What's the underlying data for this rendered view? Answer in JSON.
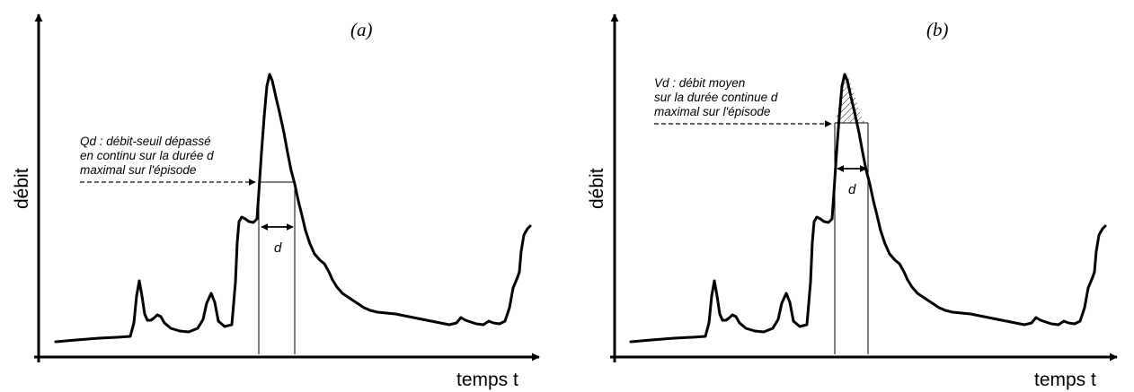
{
  "panel_a": {
    "label": "(a)",
    "y_axis_label": "débit",
    "x_axis_label": "temps t",
    "annotation": [
      "Qd : débit-seuil dépassé",
      "en continu sur la durée d",
      "maximal sur l'épisode"
    ],
    "duration_label": "d"
  },
  "panel_b": {
    "label": "(b)",
    "y_axis_label": "débit",
    "x_axis_label": "temps t",
    "annotation": [
      "Vd : débit moyen",
      "sur la durée continue d",
      "maximal sur l'épisode"
    ],
    "duration_label": "d"
  }
}
